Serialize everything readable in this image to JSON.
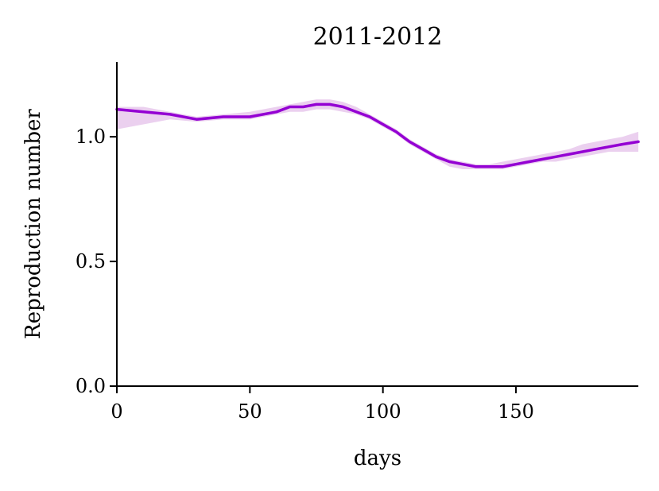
{
  "chart_data": {
    "type": "line",
    "title": "2011-2012",
    "xlabel": "days",
    "ylabel": "Reproduction number",
    "xlim": [
      0,
      196
    ],
    "ylim": [
      0,
      1.3
    ],
    "xticks": [
      0,
      50,
      100,
      150
    ],
    "yticks": [
      0.0,
      0.5,
      1.0
    ],
    "xtick_labels": [
      "0",
      "50",
      "100",
      "150"
    ],
    "ytick_labels": [
      "0.0",
      "0.5",
      "1.0"
    ],
    "grid": false,
    "line_color": "#9400D3",
    "band_color": "#E8C8EC",
    "series": [
      {
        "x": [
          0,
          10,
          20,
          30,
          40,
          50,
          60,
          65,
          70,
          75,
          80,
          85,
          90,
          95,
          100,
          105,
          110,
          115,
          120,
          125,
          130,
          135,
          140,
          145,
          150,
          155,
          160,
          165,
          170,
          175,
          180,
          185,
          190,
          196
        ],
        "y": [
          1.11,
          1.1,
          1.09,
          1.07,
          1.08,
          1.08,
          1.1,
          1.12,
          1.12,
          1.13,
          1.13,
          1.12,
          1.1,
          1.08,
          1.05,
          1.02,
          0.98,
          0.95,
          0.92,
          0.9,
          0.89,
          0.88,
          0.88,
          0.88,
          0.89,
          0.9,
          0.91,
          0.92,
          0.93,
          0.94,
          0.95,
          0.96,
          0.97,
          0.98
        ],
        "lower": [
          1.03,
          1.05,
          1.07,
          1.06,
          1.07,
          1.07,
          1.09,
          1.1,
          1.1,
          1.11,
          1.11,
          1.1,
          1.09,
          1.07,
          1.04,
          1.01,
          0.97,
          0.94,
          0.91,
          0.88,
          0.87,
          0.87,
          0.87,
          0.87,
          0.88,
          0.89,
          0.9,
          0.9,
          0.91,
          0.92,
          0.93,
          0.94,
          0.94,
          0.94
        ],
        "upper": [
          1.12,
          1.12,
          1.1,
          1.08,
          1.09,
          1.1,
          1.12,
          1.13,
          1.14,
          1.15,
          1.15,
          1.14,
          1.12,
          1.09,
          1.06,
          1.03,
          0.99,
          0.96,
          0.93,
          0.91,
          0.9,
          0.89,
          0.89,
          0.9,
          0.91,
          0.92,
          0.93,
          0.94,
          0.95,
          0.97,
          0.98,
          0.99,
          1.0,
          1.02
        ]
      }
    ]
  }
}
